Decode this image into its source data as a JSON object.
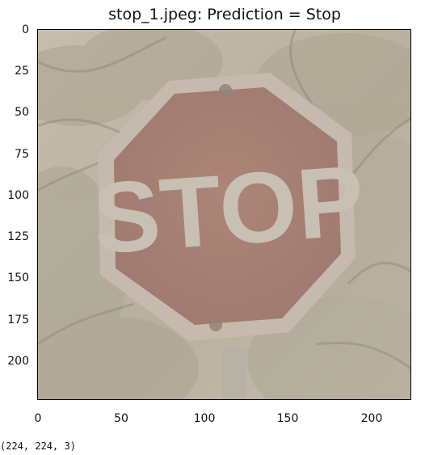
{
  "figure": {
    "title": "stop_1.jpeg: Prediction = Stop",
    "sign_text": "STOP",
    "x_ticks": [
      "0",
      "50",
      "100",
      "150",
      "200"
    ],
    "y_ticks": [
      "0",
      "25",
      "50",
      "75",
      "100",
      "125",
      "150",
      "175",
      "200"
    ],
    "colors": {
      "background": "#c3b8a9",
      "sign": "#a98476",
      "border": "#c6b9ac",
      "axis": "#000000"
    }
  },
  "output": {
    "shape_text": "(224, 224, 3)"
  }
}
